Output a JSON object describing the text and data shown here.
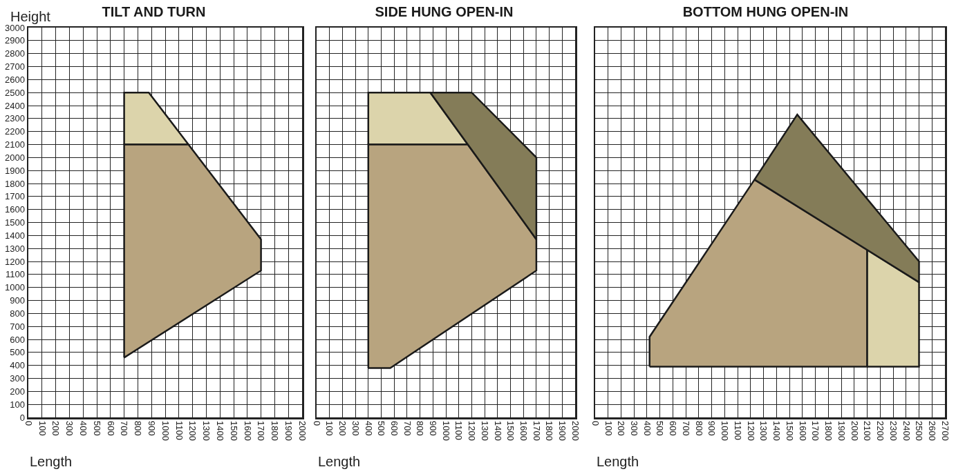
{
  "chart_data": [
    {
      "type": "area",
      "title": "TILT AND TURN",
      "xlabel": "Length",
      "ylabel": "Height",
      "grid": true,
      "xlim": [
        0,
        2000
      ],
      "xticks": [
        0,
        100,
        200,
        300,
        400,
        500,
        600,
        700,
        800,
        900,
        1000,
        1100,
        1200,
        1300,
        1400,
        1500,
        1600,
        1700,
        1800,
        1900,
        2000
      ],
      "ylim": [
        0,
        3000
      ],
      "yticks": [
        0,
        100,
        200,
        300,
        400,
        500,
        600,
        700,
        800,
        900,
        1000,
        1100,
        1200,
        1300,
        1400,
        1500,
        1600,
        1700,
        1800,
        1900,
        2000,
        2100,
        2200,
        2300,
        2400,
        2500,
        2600,
        2700,
        2800,
        2900,
        3000
      ],
      "series": [
        {
          "color": "#dcd4ab",
          "x": [
            700,
            700,
            880,
            1170,
            700
          ],
          "values": [
            2100,
            2500,
            2500,
            2100,
            2100
          ]
        },
        {
          "color": "#b8a47f",
          "x": [
            700,
            700,
            1170,
            1700,
            1700,
            700
          ],
          "values": [
            460,
            2100,
            2100,
            1370,
            1130,
            460
          ]
        }
      ]
    },
    {
      "type": "area",
      "title": "SIDE HUNG OPEN-IN",
      "xlabel": "Length",
      "grid": true,
      "tick_labels": "x",
      "xlim": [
        0,
        2000
      ],
      "xticks": [
        0,
        100,
        200,
        300,
        400,
        500,
        600,
        700,
        800,
        900,
        1000,
        1100,
        1200,
        1300,
        1400,
        1500,
        1600,
        1700,
        1800,
        1900,
        2000
      ],
      "ylim": [
        0,
        3000
      ],
      "yticks": [
        0,
        100,
        200,
        300,
        400,
        500,
        600,
        700,
        800,
        900,
        1000,
        1100,
        1200,
        1300,
        1400,
        1500,
        1600,
        1700,
        1800,
        1900,
        2000,
        2100,
        2200,
        2300,
        2400,
        2500,
        2600,
        2700,
        2800,
        2900,
        3000
      ],
      "series": [
        {
          "color": "#dcd4ab",
          "x": [
            400,
            400,
            880,
            1170,
            400
          ],
          "values": [
            2100,
            2500,
            2500,
            2100,
            2100
          ]
        },
        {
          "color": "#b8a47f",
          "x": [
            400,
            400,
            1170,
            1700,
            1700,
            570,
            400
          ],
          "values": [
            380,
            2100,
            2100,
            1370,
            1130,
            380,
            380
          ]
        },
        {
          "color": "#847c58",
          "x": [
            880,
            1200,
            1700,
            1700,
            880
          ],
          "values": [
            2500,
            2500,
            2000,
            1370,
            2500
          ]
        }
      ]
    },
    {
      "type": "area",
      "title": "BOTTOM HUNG OPEN-IN",
      "xlabel": "Length",
      "grid": true,
      "tick_labels": "x",
      "xlim": [
        0,
        2700
      ],
      "xticks": [
        0,
        100,
        200,
        300,
        400,
        500,
        600,
        700,
        800,
        900,
        1000,
        1100,
        1200,
        1300,
        1400,
        1500,
        1600,
        1700,
        1800,
        1900,
        2000,
        2100,
        2200,
        2300,
        2400,
        2500,
        2600,
        2700
      ],
      "ylim": [
        0,
        3000
      ],
      "yticks": [
        0,
        100,
        200,
        300,
        400,
        500,
        600,
        700,
        800,
        900,
        1000,
        1100,
        1200,
        1300,
        1400,
        1500,
        1600,
        1700,
        1800,
        1900,
        2000,
        2100,
        2200,
        2300,
        2400,
        2500,
        2600,
        2700,
        2800,
        2900,
        3000
      ],
      "series": [
        {
          "color": "#b8a47f",
          "x": [
            420,
            420,
            1230,
            2100,
            2100,
            420
          ],
          "values": [
            390,
            620,
            1830,
            1290,
            390,
            390
          ]
        },
        {
          "color": "#dcd4ab",
          "x": [
            2100,
            2100,
            2500,
            2500,
            2100
          ],
          "values": [
            390,
            1290,
            1040,
            390,
            390
          ]
        },
        {
          "color": "#847c58",
          "x": [
            1230,
            1560,
            2500,
            2500,
            1230
          ],
          "values": [
            1830,
            2330,
            1200,
            1040,
            1830
          ]
        }
      ]
    }
  ]
}
